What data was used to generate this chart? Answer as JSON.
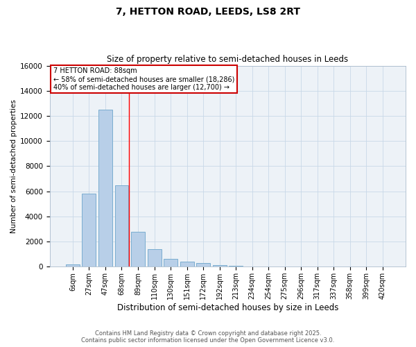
{
  "title1": "7, HETTON ROAD, LEEDS, LS8 2RT",
  "title2": "Size of property relative to semi-detached houses in Leeds",
  "xlabel": "Distribution of semi-detached houses by size in Leeds",
  "ylabel": "Number of semi-detached properties",
  "categories": [
    "6sqm",
    "27sqm",
    "47sqm",
    "68sqm",
    "89sqm",
    "110sqm",
    "130sqm",
    "151sqm",
    "172sqm",
    "192sqm",
    "213sqm",
    "234sqm",
    "254sqm",
    "275sqm",
    "296sqm",
    "317sqm",
    "337sqm",
    "358sqm",
    "399sqm",
    "420sqm"
  ],
  "values": [
    200,
    5800,
    12500,
    6500,
    2800,
    1400,
    600,
    400,
    300,
    150,
    50,
    20,
    10,
    5,
    5,
    5,
    0,
    0,
    0,
    0
  ],
  "bar_color": "#b8cfe8",
  "bar_edge_color": "#7aadd0",
  "property_sqm": 88,
  "pct_smaller": 58,
  "count_smaller": 18286,
  "pct_larger": 40,
  "count_larger": 12700,
  "annotation_box_color": "#cc0000",
  "ylim": [
    0,
    16000
  ],
  "yticks": [
    0,
    2000,
    4000,
    6000,
    8000,
    10000,
    12000,
    14000,
    16000
  ],
  "grid_color": "#c8d8e8",
  "background_color": "#edf2f7",
  "footer1": "Contains HM Land Registry data © Crown copyright and database right 2025.",
  "footer2": "Contains public sector information licensed under the Open Government Licence v3.0."
}
